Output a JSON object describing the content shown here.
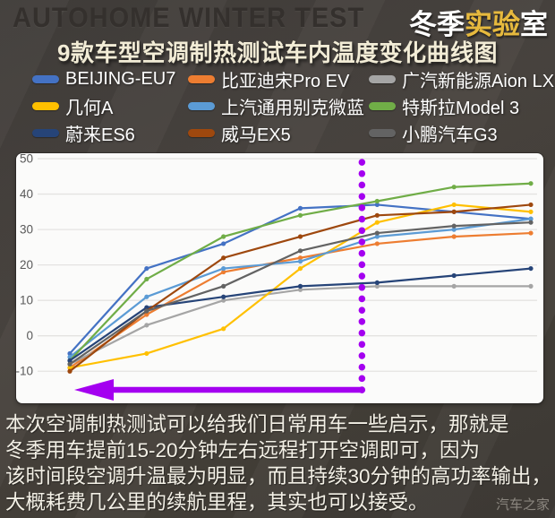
{
  "header": {
    "watermark": "AUTOHOME WINTER TEST",
    "logo": {
      "part_white_1": "冬季",
      "part_gold": "实验",
      "part_white_2": "室",
      "gold_color": "#e6b93e"
    },
    "title": "9款车型空调制热测试车内温度变化曲线图"
  },
  "legend": {
    "items": [
      {
        "label": "BEIJING-EU7",
        "color": "#4472C4"
      },
      {
        "label": "比亚迪宋Pro EV",
        "color": "#ED7D31"
      },
      {
        "label": "广汽新能源Aion LX",
        "color": "#A5A5A5"
      },
      {
        "label": "几何A",
        "color": "#FFC000"
      },
      {
        "label": "上汽通用别克微蓝",
        "color": "#5B9BD5"
      },
      {
        "label": "特斯拉Model 3",
        "color": "#70AD47"
      },
      {
        "label": "蔚来ES6",
        "color": "#264478"
      },
      {
        "label": "威马EX5",
        "color": "#9E480E"
      },
      {
        "label": "小鹏汽车G3",
        "color": "#636363"
      }
    ]
  },
  "chart_data": {
    "type": "line",
    "title": "9款车型空调制热测试车内温度变化曲线图",
    "xlabel": "",
    "ylabel": "",
    "x_tick_labels_visible": false,
    "num_points": 7,
    "y_ticks": [
      50,
      40,
      30,
      20,
      10,
      0,
      -10
    ],
    "ylim": [
      -14,
      51
    ],
    "grid": "horizontal",
    "axis_label_color": "#595959",
    "gridline_color": "#e4e3e1",
    "series": [
      {
        "name": "BEIJING-EU7",
        "color": "#4472C4",
        "values": [
          -5,
          19,
          26,
          36,
          37,
          35,
          33
        ]
      },
      {
        "name": "比亚迪宋Pro EV",
        "color": "#ED7D31",
        "values": [
          -9,
          6,
          18,
          22,
          26,
          28,
          29
        ]
      },
      {
        "name": "广汽新能源Aion LX",
        "color": "#A5A5A5",
        "values": [
          -8,
          3,
          10,
          13,
          14,
          14,
          14
        ]
      },
      {
        "name": "几何A",
        "color": "#FFC000",
        "values": [
          -9,
          -5,
          2,
          19,
          32,
          37,
          35
        ]
      },
      {
        "name": "上汽通用别克微蓝",
        "color": "#5B9BD5",
        "values": [
          -6,
          11,
          19,
          21,
          28,
          30,
          33
        ]
      },
      {
        "name": "特斯拉Model 3",
        "color": "#70AD47",
        "values": [
          -7,
          16,
          28,
          34,
          38,
          42,
          43
        ]
      },
      {
        "name": "蔚来ES6",
        "color": "#264478",
        "values": [
          -7,
          8,
          11,
          14,
          15,
          17,
          19
        ]
      },
      {
        "name": "威马EX5",
        "color": "#9E480E",
        "values": [
          -10,
          7,
          22,
          28,
          34,
          35,
          37
        ]
      },
      {
        "name": "小鹏汽车G3",
        "color": "#636363",
        "values": [
          -8,
          7,
          14,
          24,
          29,
          31,
          32
        ]
      }
    ],
    "annotations": {
      "vertical_dotted_line": {
        "at_point_index": 4,
        "color": "#A400F0",
        "style": "dotted"
      },
      "arrow": {
        "direction": "left",
        "color": "#A400F0",
        "position": "bottom"
      }
    }
  },
  "footer": {
    "lines": [
      "本次空调制热测试可以给我们日常用车一些启示，那就是",
      "冬季用车提前15-20分钟左右远程打开空调即可，因为",
      "该时间段空调升温最为明显，而且持续30分钟的高功率输出，",
      "大概耗费几公里的续航里程，其实也可以接受。"
    ],
    "watermark": "汽车之家"
  }
}
